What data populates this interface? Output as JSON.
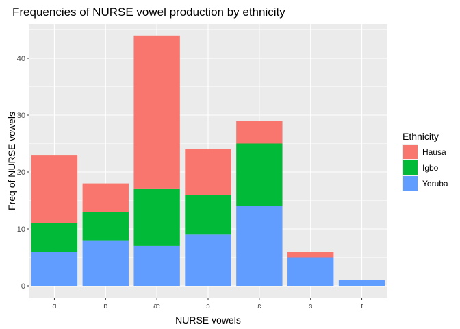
{
  "chart_data": {
    "type": "bar",
    "stacked": true,
    "title": "Frequencies of NURSE vowel production by ethnicity",
    "xlabel": "NURSE vowels",
    "ylabel": "Freq of NURSE vowels",
    "categories": [
      "ɑ",
      "ɒ",
      "æ",
      "ɔ",
      "ɛ",
      "ɜ",
      "ɪ"
    ],
    "series": [
      {
        "name": "Yoruba",
        "color": "#619CFF",
        "values": [
          6,
          8,
          7,
          9,
          14,
          5,
          1
        ]
      },
      {
        "name": "Igbo",
        "color": "#00BA38",
        "values": [
          5,
          5,
          10,
          7,
          11,
          0,
          0
        ]
      },
      {
        "name": "Hausa",
        "color": "#F8766D",
        "values": [
          12,
          5,
          27,
          8,
          4,
          1,
          0
        ]
      }
    ],
    "legend_order": [
      "Hausa",
      "Igbo",
      "Yoruba"
    ],
    "legend_title": "Ethnicity",
    "legend_position": "right",
    "ylim": [
      0,
      46
    ],
    "yticks": [
      0,
      10,
      20,
      30,
      40
    ],
    "grid": true,
    "panel_background": "#EBEBEB"
  }
}
